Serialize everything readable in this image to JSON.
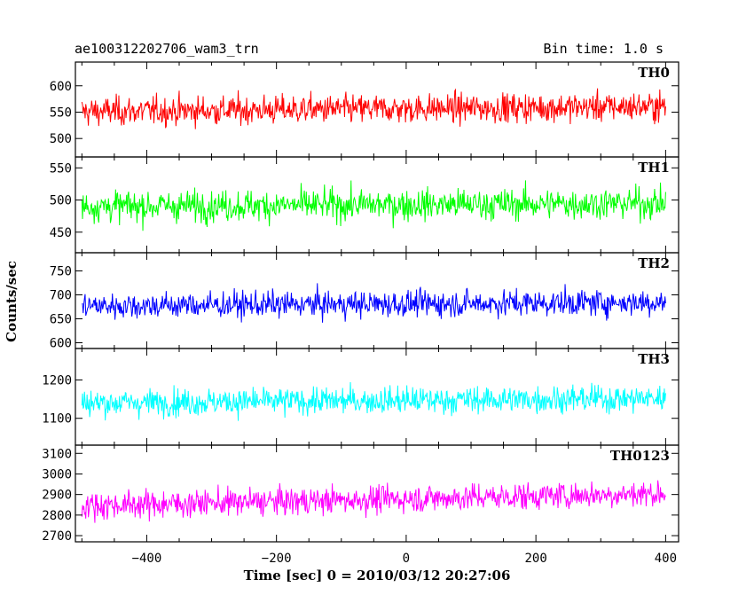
{
  "header": {
    "title": "ae100312202706_wam3_trn",
    "bin_time": "Bin time: 1.0 s"
  },
  "chart_data": {
    "type": "line",
    "xlabel": "Time [sec] 0 = 2010/03/12 20:27:06",
    "ylabel": "Counts/sec",
    "xlim": [
      -510,
      420
    ],
    "x_range_data": [
      -500,
      400
    ],
    "x_ticks": [
      -400,
      -200,
      0,
      200,
      400
    ],
    "x_tick_labels": [
      "−400",
      "−200",
      "0",
      "200",
      "400"
    ],
    "panels": [
      {
        "name": "TH0",
        "color": "#ff0000",
        "ylim": [
          465,
          645
        ],
        "y_ticks": [
          500,
          550,
          600
        ],
        "y_tick_labels": [
          "500",
          "550",
          "600"
        ],
        "baseline": 555,
        "noise": 25,
        "trend": 10
      },
      {
        "name": "TH1",
        "color": "#00ff00",
        "ylim": [
          418,
          567
        ],
        "y_ticks": [
          450,
          500,
          550
        ],
        "y_tick_labels": [
          "450",
          "500",
          "550"
        ],
        "baseline": 492,
        "noise": 22,
        "trend": 5
      },
      {
        "name": "TH2",
        "color": "#0000ff",
        "ylim": [
          588,
          788
        ],
        "y_ticks": [
          600,
          650,
          700,
          750
        ],
        "y_tick_labels": [
          "600",
          "650",
          "700",
          "750"
        ],
        "baseline": 680,
        "noise": 25,
        "trend": 8
      },
      {
        "name": "TH3",
        "color": "#00ffff",
        "ylim": [
          1030,
          1282
        ],
        "y_ticks": [
          1100,
          1200
        ],
        "y_tick_labels": [
          "1100",
          "1200"
        ],
        "baseline": 1145,
        "noise": 32,
        "trend": 12
      },
      {
        "name": "TH0123",
        "color": "#ff00ff",
        "ylim": [
          2670,
          3140
        ],
        "y_ticks": [
          2700,
          2800,
          2900,
          3000,
          3100
        ],
        "y_tick_labels": [
          "2700",
          "2800",
          "2900",
          "3000",
          "3100"
        ],
        "baseline": 2870,
        "noise": 60,
        "trend": 60
      }
    ]
  }
}
